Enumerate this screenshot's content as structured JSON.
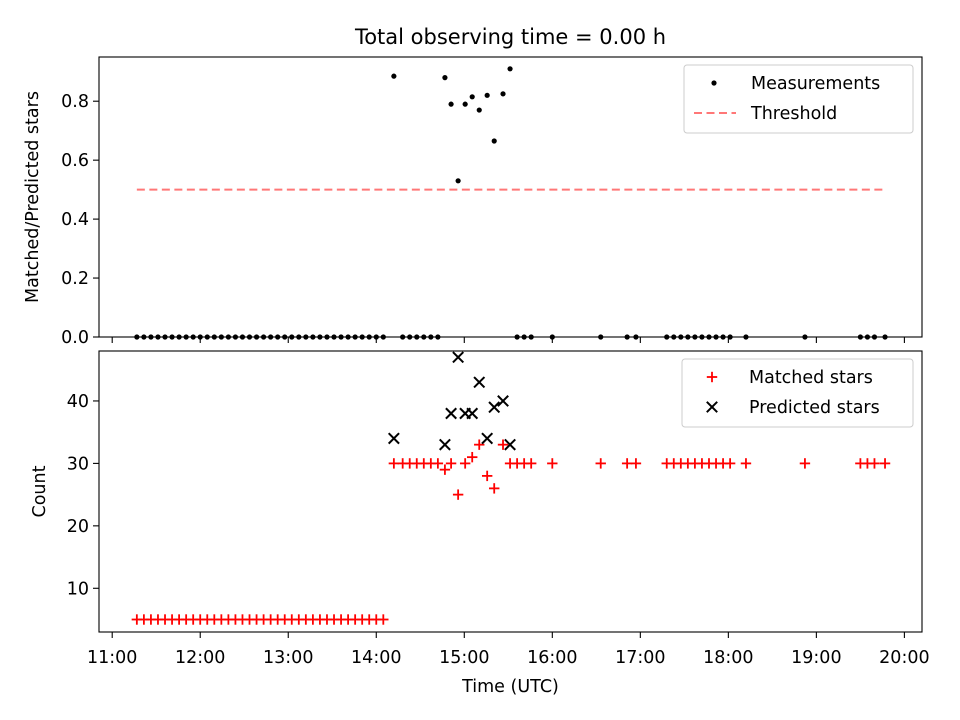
{
  "chart_data": [
    {
      "type": "scatter",
      "title": "Total observing time = 0.00 h",
      "ylabel": "Matched/Predicted stars",
      "xlabel": "",
      "xlim": [
        10.85,
        20.2
      ],
      "ylim": [
        0,
        0.95
      ],
      "yticks": [
        0.0,
        0.2,
        0.4,
        0.6,
        0.8
      ],
      "ytick_labels": [
        "0.0",
        "0.2",
        "0.4",
        "0.6",
        "0.8"
      ],
      "legend": {
        "position": "upper right",
        "entries": [
          "Measurements",
          "Threshold"
        ]
      },
      "series": [
        {
          "name": "Measurements",
          "color": "#000000",
          "points": [
            [
              11.28,
              0
            ],
            [
              11.36,
              0
            ],
            [
              11.44,
              0
            ],
            [
              11.52,
              0
            ],
            [
              11.6,
              0
            ],
            [
              11.68,
              0
            ],
            [
              11.76,
              0
            ],
            [
              11.84,
              0
            ],
            [
              11.92,
              0
            ],
            [
              12.0,
              0
            ],
            [
              12.08,
              0
            ],
            [
              12.16,
              0
            ],
            [
              12.24,
              0
            ],
            [
              12.32,
              0
            ],
            [
              12.4,
              0
            ],
            [
              12.48,
              0
            ],
            [
              12.56,
              0
            ],
            [
              12.64,
              0
            ],
            [
              12.72,
              0
            ],
            [
              12.8,
              0
            ],
            [
              12.88,
              0
            ],
            [
              12.96,
              0
            ],
            [
              13.04,
              0
            ],
            [
              13.12,
              0
            ],
            [
              13.2,
              0
            ],
            [
              13.28,
              0
            ],
            [
              13.36,
              0
            ],
            [
              13.44,
              0
            ],
            [
              13.52,
              0
            ],
            [
              13.6,
              0
            ],
            [
              13.68,
              0
            ],
            [
              13.76,
              0
            ],
            [
              13.84,
              0
            ],
            [
              13.92,
              0
            ],
            [
              14.0,
              0
            ],
            [
              14.08,
              0
            ],
            [
              14.2,
              0.885
            ],
            [
              14.3,
              0
            ],
            [
              14.38,
              0
            ],
            [
              14.46,
              0
            ],
            [
              14.54,
              0
            ],
            [
              14.62,
              0
            ],
            [
              14.7,
              0
            ],
            [
              14.78,
              0.88
            ],
            [
              14.85,
              0.79
            ],
            [
              14.93,
              0.53
            ],
            [
              15.01,
              0.79
            ],
            [
              15.09,
              0.815
            ],
            [
              15.17,
              0.77
            ],
            [
              15.26,
              0.82
            ],
            [
              15.34,
              0.665
            ],
            [
              15.44,
              0.825
            ],
            [
              15.52,
              0.91
            ],
            [
              15.6,
              0
            ],
            [
              15.68,
              0
            ],
            [
              15.76,
              0
            ],
            [
              16.0,
              0
            ],
            [
              16.55,
              0
            ],
            [
              16.85,
              0
            ],
            [
              16.95,
              0
            ],
            [
              17.3,
              0
            ],
            [
              17.38,
              0
            ],
            [
              17.46,
              0
            ],
            [
              17.54,
              0
            ],
            [
              17.62,
              0
            ],
            [
              17.7,
              0
            ],
            [
              17.78,
              0
            ],
            [
              17.86,
              0
            ],
            [
              17.94,
              0
            ],
            [
              18.02,
              0
            ],
            [
              18.2,
              0
            ],
            [
              18.87,
              0
            ],
            [
              19.5,
              0
            ],
            [
              19.58,
              0
            ],
            [
              19.66,
              0
            ],
            [
              19.78,
              0
            ]
          ]
        },
        {
          "name": "Threshold",
          "color": "#ff7777",
          "style": "dashed",
          "x": [
            11.28,
            19.78
          ],
          "y": [
            0.5,
            0.5
          ]
        }
      ]
    },
    {
      "type": "scatter",
      "title": "",
      "ylabel": "Count",
      "xlabel": "Time (UTC)",
      "xlim": [
        10.85,
        20.2
      ],
      "ylim": [
        3,
        48
      ],
      "yticks": [
        10,
        20,
        30,
        40
      ],
      "ytick_labels": [
        "10",
        "20",
        "30",
        "40"
      ],
      "xticks": [
        11,
        12,
        13,
        14,
        15,
        16,
        17,
        18,
        19,
        20
      ],
      "xtick_labels": [
        "11:00",
        "12:00",
        "13:00",
        "14:00",
        "15:00",
        "16:00",
        "17:00",
        "18:00",
        "19:00",
        "20:00"
      ],
      "legend": {
        "position": "upper right",
        "entries": [
          "Matched stars",
          "Predicted stars"
        ]
      },
      "series": [
        {
          "name": "Matched stars",
          "color": "#ff0000",
          "marker": "plus",
          "points": [
            [
              11.28,
              5
            ],
            [
              11.36,
              5
            ],
            [
              11.44,
              5
            ],
            [
              11.52,
              5
            ],
            [
              11.6,
              5
            ],
            [
              11.68,
              5
            ],
            [
              11.76,
              5
            ],
            [
              11.84,
              5
            ],
            [
              11.92,
              5
            ],
            [
              12.0,
              5
            ],
            [
              12.08,
              5
            ],
            [
              12.16,
              5
            ],
            [
              12.24,
              5
            ],
            [
              12.32,
              5
            ],
            [
              12.4,
              5
            ],
            [
              12.48,
              5
            ],
            [
              12.56,
              5
            ],
            [
              12.64,
              5
            ],
            [
              12.72,
              5
            ],
            [
              12.8,
              5
            ],
            [
              12.88,
              5
            ],
            [
              12.96,
              5
            ],
            [
              13.04,
              5
            ],
            [
              13.12,
              5
            ],
            [
              13.2,
              5
            ],
            [
              13.28,
              5
            ],
            [
              13.36,
              5
            ],
            [
              13.44,
              5
            ],
            [
              13.52,
              5
            ],
            [
              13.6,
              5
            ],
            [
              13.68,
              5
            ],
            [
              13.76,
              5
            ],
            [
              13.84,
              5
            ],
            [
              13.92,
              5
            ],
            [
              14.0,
              5
            ],
            [
              14.08,
              5
            ],
            [
              14.2,
              30
            ],
            [
              14.3,
              30
            ],
            [
              14.38,
              30
            ],
            [
              14.46,
              30
            ],
            [
              14.54,
              30
            ],
            [
              14.62,
              30
            ],
            [
              14.7,
              30
            ],
            [
              14.78,
              29
            ],
            [
              14.85,
              30
            ],
            [
              14.93,
              25
            ],
            [
              15.01,
              30
            ],
            [
              15.09,
              31
            ],
            [
              15.17,
              33
            ],
            [
              15.26,
              28
            ],
            [
              15.34,
              26
            ],
            [
              15.44,
              33
            ],
            [
              15.52,
              30
            ],
            [
              15.6,
              30
            ],
            [
              15.68,
              30
            ],
            [
              15.76,
              30
            ],
            [
              16.0,
              30
            ],
            [
              16.55,
              30
            ],
            [
              16.85,
              30
            ],
            [
              16.95,
              30
            ],
            [
              17.3,
              30
            ],
            [
              17.38,
              30
            ],
            [
              17.46,
              30
            ],
            [
              17.54,
              30
            ],
            [
              17.62,
              30
            ],
            [
              17.7,
              30
            ],
            [
              17.78,
              30
            ],
            [
              17.86,
              30
            ],
            [
              17.94,
              30
            ],
            [
              18.02,
              30
            ],
            [
              18.2,
              30
            ],
            [
              18.87,
              30
            ],
            [
              19.5,
              30
            ],
            [
              19.58,
              30
            ],
            [
              19.66,
              30
            ],
            [
              19.78,
              30
            ]
          ]
        },
        {
          "name": "Predicted stars",
          "color": "#000000",
          "marker": "x",
          "points": [
            [
              14.2,
              34
            ],
            [
              14.78,
              33
            ],
            [
              14.85,
              38
            ],
            [
              14.93,
              47
            ],
            [
              15.01,
              38
            ],
            [
              15.09,
              38
            ],
            [
              15.17,
              43
            ],
            [
              15.26,
              34
            ],
            [
              15.34,
              39
            ],
            [
              15.44,
              40
            ],
            [
              15.52,
              33
            ]
          ]
        }
      ]
    }
  ]
}
